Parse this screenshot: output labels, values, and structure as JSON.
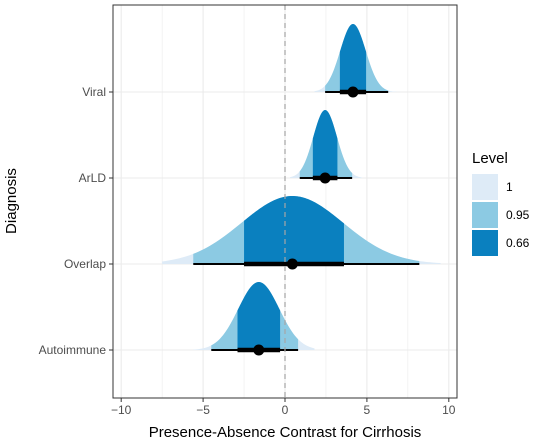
{
  "chart_data": {
    "type": "halfeye",
    "xlabel": "Presence-Absence Contrast for Cirrhosis",
    "ylabel": "Diagnosis",
    "xlim": [
      -10.5,
      10.5
    ],
    "xticks": [
      -10,
      -5,
      0,
      5,
      10
    ],
    "xtick_labels": [
      "−10",
      "−5",
      "0",
      "5",
      "10"
    ],
    "reference_line_x": 0,
    "categories": [
      "Viral",
      "ArLD",
      "Overlap",
      "Autoimmune"
    ],
    "distributions": [
      {
        "name": "Viral",
        "mean": 4.15,
        "sd": 0.78,
        "point": 4.15,
        "interval_066": [
          3.35,
          4.95
        ],
        "interval_095": [
          2.45,
          6.3
        ],
        "interval_100": [
          1.8,
          7.1
        ]
      },
      {
        "name": "ArLD",
        "mean": 2.45,
        "sd": 0.72,
        "point": 2.45,
        "interval_066": [
          1.7,
          3.2
        ],
        "interval_095": [
          0.9,
          4.1
        ],
        "interval_100": [
          0.3,
          4.7
        ]
      },
      {
        "name": "Overlap",
        "mean": 0.45,
        "sd": 3.1,
        "point": 0.45,
        "interval_066": [
          -2.5,
          3.6
        ],
        "interval_095": [
          -5.6,
          8.2
        ],
        "interval_100": [
          -7.5,
          9.5
        ]
      },
      {
        "name": "Autoimmune",
        "mean": -1.6,
        "sd": 1.25,
        "point": -1.6,
        "interval_066": [
          -2.9,
          -0.3
        ],
        "interval_095": [
          -4.5,
          0.8
        ],
        "interval_100": [
          -5.6,
          1.8
        ]
      }
    ],
    "legend": {
      "title": "Level",
      "position": "right",
      "entries": [
        {
          "label": "1",
          "color": "#deebf7"
        },
        {
          "label": "0.95",
          "color": "#8ccae3"
        },
        {
          "label": "0.66",
          "color": "#0a80bf"
        }
      ]
    },
    "grid": true,
    "colors": {
      "level_100": "#deebf7",
      "level_095": "#8ccae3",
      "level_066": "#0a80bf",
      "interval": "#000000",
      "gridline": "#ebebeb",
      "reference_line": "#a6a6a6"
    }
  }
}
